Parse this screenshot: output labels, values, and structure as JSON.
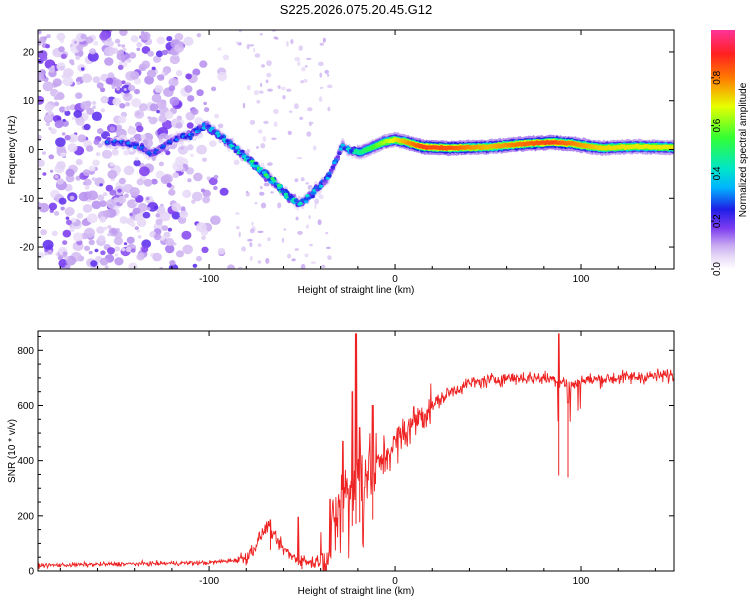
{
  "title": "S225.2026.075.20.45.G12",
  "chart_data": [
    {
      "type": "heatmap",
      "xlabel": "Height of straight line (km)",
      "ylabel": "Frequency (Hz)",
      "xlim": [
        -192,
        150
      ],
      "ylim": [
        -24.5,
        24.5
      ],
      "xticks": [
        -100,
        0,
        100
      ],
      "xtick_labels": [
        "-100",
        "0",
        "100"
      ],
      "yticks": [
        -20,
        -10,
        0,
        10,
        20
      ],
      "ytick_labels": [
        "-20",
        "-10",
        "0",
        "10",
        "20"
      ],
      "colorbar": {
        "label": "Normalized spectral amplitude",
        "range": [
          0,
          1
        ],
        "ticks": [
          0,
          0.2,
          0.4,
          0.6,
          0.8
        ],
        "tick_labels": [
          "0.0",
          "0.2",
          "0.4",
          "0.6",
          "0.8"
        ],
        "colors": [
          "#ffffff",
          "#e8dbf7",
          "#c7a8f0",
          "#7d3cf0",
          "#1e1ee6",
          "#00b4ff",
          "#00e6c8",
          "#33ff33",
          "#e6ff00",
          "#ff7a00",
          "#ff2020",
          "#ff3399"
        ]
      },
      "ridge": {
        "x": [
          -150,
          -140,
          -130,
          -120,
          -110,
          -102,
          -95,
          -88,
          -82,
          -76,
          -70,
          -64,
          -58,
          -52,
          -47,
          -42,
          -38,
          -35,
          -32,
          -28,
          -24,
          -18,
          -12,
          -6,
          0,
          6,
          15,
          30,
          50,
          70,
          85,
          95,
          110,
          130,
          150
        ],
        "freq": [
          1.5,
          1.0,
          -1.0,
          2.0,
          3.0,
          5.0,
          3.0,
          1.0,
          -1.0,
          -3.0,
          -5.0,
          -7.0,
          -9.5,
          -11.0,
          -10.0,
          -8.0,
          -6.5,
          -5.0,
          -2.5,
          1.0,
          -0.5,
          -0.5,
          0.5,
          1.5,
          2.0,
          1.5,
          0.5,
          0.3,
          0.5,
          1.2,
          1.5,
          1.2,
          0.3,
          0.6,
          0.4
        ],
        "amplitude": [
          0.28,
          0.28,
          0.26,
          0.26,
          0.3,
          0.34,
          0.36,
          0.38,
          0.42,
          0.46,
          0.48,
          0.46,
          0.44,
          0.4,
          0.36,
          0.34,
          0.33,
          0.32,
          0.3,
          0.36,
          0.4,
          0.48,
          0.55,
          0.62,
          0.7,
          0.76,
          0.86,
          0.84,
          0.74,
          0.82,
          0.86,
          0.8,
          0.72,
          0.7,
          0.7
        ]
      }
    },
    {
      "type": "line",
      "xlabel": "Height of straight line (km)",
      "ylabel": "SNR (10 * v/v)",
      "xlim": [
        -192,
        150
      ],
      "ylim": [
        0,
        870
      ],
      "xticks": [
        -100,
        0,
        100
      ],
      "xtick_labels": [
        "-100",
        "0",
        "100"
      ],
      "yticks": [
        0,
        200,
        400,
        600,
        800
      ],
      "ytick_labels": [
        "0",
        "200",
        "400",
        "600",
        "800"
      ],
      "color": "#ee2222",
      "envelope": {
        "x": [
          -192,
          -150,
          -100,
          -85,
          -80,
          -75,
          -72,
          -68,
          -65,
          -60,
          -55,
          -50,
          -45,
          -40,
          -36,
          -32,
          -28,
          -24,
          -20,
          -16,
          -10,
          -5,
          0,
          5,
          10,
          20,
          30,
          40,
          50,
          60,
          80,
          90,
          95,
          100,
          120,
          150
        ],
        "snr": [
          20,
          25,
          30,
          40,
          50,
          90,
          130,
          170,
          120,
          80,
          50,
          40,
          30,
          40,
          80,
          180,
          280,
          320,
          350,
          360,
          380,
          420,
          460,
          500,
          540,
          600,
          650,
          680,
          690,
          700,
          700,
          690,
          670,
          690,
          700,
          710
        ]
      },
      "spikes": [
        {
          "x": -67,
          "snr": 185
        },
        {
          "x": -52,
          "snr": 195
        },
        {
          "x": -35,
          "snr": 260
        },
        {
          "x": -28,
          "snr": 470
        },
        {
          "x": -23,
          "snr": 650
        },
        {
          "x": -21,
          "snr": 860
        },
        {
          "x": -19,
          "snr": 520
        },
        {
          "x": -12,
          "snr": 600
        },
        {
          "x": 88,
          "snr": 860
        },
        {
          "x": 93,
          "snr": 610
        }
      ]
    }
  ]
}
